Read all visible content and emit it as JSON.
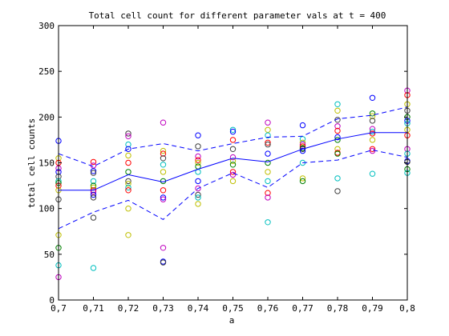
{
  "chart_data": {
    "type": "scatter",
    "title": "Total cell count for different parameter vals at t = 400",
    "xlabel": "a",
    "ylabel": "total cell counts",
    "xlim": [
      0.7,
      0.8
    ],
    "ylim": [
      0,
      300
    ],
    "xticks": [
      0.7,
      0.71,
      0.72,
      0.73,
      0.74,
      0.75,
      0.76,
      0.77,
      0.78,
      0.79,
      0.8
    ],
    "xtick_labels": [
      "0,7",
      "0,71",
      "0,72",
      "0,73",
      "0,74",
      "0,75",
      "0,76",
      "0,77",
      "0,78",
      "0,79",
      "0,8"
    ],
    "yticks": [
      0,
      50,
      100,
      150,
      200,
      250,
      300
    ],
    "ytick_labels": [
      "0",
      "50",
      "100",
      "150",
      "200",
      "250",
      "300"
    ],
    "grid": false,
    "legend": false,
    "marker_colors": [
      "#0000ff",
      "#008000",
      "#ff0000",
      "#00bfbf",
      "#bf00bf",
      "#bfbf00",
      "#404040"
    ],
    "mean_line": {
      "color": "#0000ff",
      "style": "solid",
      "x": [
        0.7,
        0.71,
        0.72,
        0.73,
        0.74,
        0.75,
        0.76,
        0.77,
        0.78,
        0.79,
        0.8
      ],
      "y": [
        120,
        120,
        137,
        129,
        143,
        155,
        151,
        165,
        176,
        183,
        183
      ]
    },
    "upper_band": {
      "color": "#0000ff",
      "style": "dashed",
      "x": [
        0.7,
        0.71,
        0.72,
        0.73,
        0.74,
        0.75,
        0.76,
        0.77,
        0.78,
        0.79,
        0.8
      ],
      "y": [
        160,
        146,
        165,
        171,
        163,
        171,
        178,
        179,
        198,
        202,
        211
      ]
    },
    "lower_band": {
      "color": "#0000ff",
      "style": "dashed",
      "x": [
        0.7,
        0.71,
        0.72,
        0.73,
        0.74,
        0.75,
        0.76,
        0.77,
        0.78,
        0.79,
        0.8
      ],
      "y": [
        78,
        96,
        109,
        88,
        122,
        139,
        123,
        150,
        153,
        164,
        156
      ]
    },
    "points": [
      {
        "x": 0.7,
        "y": 174,
        "c": 0
      },
      {
        "x": 0.7,
        "y": 155,
        "c": 5
      },
      {
        "x": 0.7,
        "y": 150,
        "c": 2
      },
      {
        "x": 0.7,
        "y": 144,
        "c": 4
      },
      {
        "x": 0.7,
        "y": 140,
        "c": 0
      },
      {
        "x": 0.7,
        "y": 135,
        "c": 6
      },
      {
        "x": 0.7,
        "y": 130,
        "c": 3
      },
      {
        "x": 0.7,
        "y": 128,
        "c": 1
      },
      {
        "x": 0.7,
        "y": 125,
        "c": 2
      },
      {
        "x": 0.7,
        "y": 120,
        "c": 5
      },
      {
        "x": 0.7,
        "y": 110,
        "c": 6
      },
      {
        "x": 0.7,
        "y": 71,
        "c": 5
      },
      {
        "x": 0.7,
        "y": 57,
        "c": 1
      },
      {
        "x": 0.7,
        "y": 38,
        "c": 3
      },
      {
        "x": 0.7,
        "y": 25,
        "c": 4
      },
      {
        "x": 0.71,
        "y": 151,
        "c": 2
      },
      {
        "x": 0.71,
        "y": 147,
        "c": 4
      },
      {
        "x": 0.71,
        "y": 141,
        "c": 0
      },
      {
        "x": 0.71,
        "y": 139,
        "c": 6
      },
      {
        "x": 0.71,
        "y": 130,
        "c": 3
      },
      {
        "x": 0.71,
        "y": 125,
        "c": 1
      },
      {
        "x": 0.71,
        "y": 123,
        "c": 5
      },
      {
        "x": 0.71,
        "y": 120,
        "c": 2
      },
      {
        "x": 0.71,
        "y": 118,
        "c": 4
      },
      {
        "x": 0.71,
        "y": 115,
        "c": 0
      },
      {
        "x": 0.71,
        "y": 112,
        "c": 6
      },
      {
        "x": 0.71,
        "y": 90,
        "c": 6
      },
      {
        "x": 0.71,
        "y": 35,
        "c": 3
      },
      {
        "x": 0.72,
        "y": 182,
        "c": 6
      },
      {
        "x": 0.72,
        "y": 179,
        "c": 4
      },
      {
        "x": 0.72,
        "y": 170,
        "c": 3
      },
      {
        "x": 0.72,
        "y": 165,
        "c": 0
      },
      {
        "x": 0.72,
        "y": 158,
        "c": 5
      },
      {
        "x": 0.72,
        "y": 150,
        "c": 2
      },
      {
        "x": 0.72,
        "y": 140,
        "c": 1
      },
      {
        "x": 0.72,
        "y": 130,
        "c": 6
      },
      {
        "x": 0.72,
        "y": 127,
        "c": 5
      },
      {
        "x": 0.72,
        "y": 123,
        "c": 3
      },
      {
        "x": 0.72,
        "y": 120,
        "c": 2
      },
      {
        "x": 0.72,
        "y": 100,
        "c": 5
      },
      {
        "x": 0.72,
        "y": 71,
        "c": 5
      },
      {
        "x": 0.73,
        "y": 194,
        "c": 4
      },
      {
        "x": 0.73,
        "y": 163,
        "c": 5
      },
      {
        "x": 0.73,
        "y": 160,
        "c": 2
      },
      {
        "x": 0.73,
        "y": 155,
        "c": 6
      },
      {
        "x": 0.73,
        "y": 148,
        "c": 3
      },
      {
        "x": 0.73,
        "y": 140,
        "c": 5
      },
      {
        "x": 0.73,
        "y": 130,
        "c": 1
      },
      {
        "x": 0.73,
        "y": 120,
        "c": 2
      },
      {
        "x": 0.73,
        "y": 112,
        "c": 0
      },
      {
        "x": 0.73,
        "y": 110,
        "c": 4
      },
      {
        "x": 0.73,
        "y": 57,
        "c": 4
      },
      {
        "x": 0.73,
        "y": 42,
        "c": 0
      },
      {
        "x": 0.73,
        "y": 41,
        "c": 6
      },
      {
        "x": 0.74,
        "y": 180,
        "c": 0
      },
      {
        "x": 0.74,
        "y": 168,
        "c": 6
      },
      {
        "x": 0.74,
        "y": 157,
        "c": 4
      },
      {
        "x": 0.74,
        "y": 153,
        "c": 2
      },
      {
        "x": 0.74,
        "y": 150,
        "c": 5
      },
      {
        "x": 0.74,
        "y": 146,
        "c": 1
      },
      {
        "x": 0.74,
        "y": 140,
        "c": 3
      },
      {
        "x": 0.74,
        "y": 130,
        "c": 0
      },
      {
        "x": 0.74,
        "y": 122,
        "c": 4
      },
      {
        "x": 0.74,
        "y": 115,
        "c": 6
      },
      {
        "x": 0.74,
        "y": 112,
        "c": 3
      },
      {
        "x": 0.74,
        "y": 105,
        "c": 5
      },
      {
        "x": 0.75,
        "y": 186,
        "c": 3
      },
      {
        "x": 0.75,
        "y": 184,
        "c": 0
      },
      {
        "x": 0.75,
        "y": 175,
        "c": 2
      },
      {
        "x": 0.75,
        "y": 165,
        "c": 6
      },
      {
        "x": 0.75,
        "y": 156,
        "c": 4
      },
      {
        "x": 0.75,
        "y": 152,
        "c": 5
      },
      {
        "x": 0.75,
        "y": 148,
        "c": 1
      },
      {
        "x": 0.75,
        "y": 140,
        "c": 2
      },
      {
        "x": 0.75,
        "y": 137,
        "c": 4
      },
      {
        "x": 0.75,
        "y": 130,
        "c": 5
      },
      {
        "x": 0.76,
        "y": 194,
        "c": 4
      },
      {
        "x": 0.76,
        "y": 186,
        "c": 5
      },
      {
        "x": 0.76,
        "y": 180,
        "c": 3
      },
      {
        "x": 0.76,
        "y": 172,
        "c": 2
      },
      {
        "x": 0.76,
        "y": 170,
        "c": 6
      },
      {
        "x": 0.76,
        "y": 160,
        "c": 0
      },
      {
        "x": 0.76,
        "y": 150,
        "c": 1
      },
      {
        "x": 0.76,
        "y": 140,
        "c": 5
      },
      {
        "x": 0.76,
        "y": 130,
        "c": 3
      },
      {
        "x": 0.76,
        "y": 117,
        "c": 2
      },
      {
        "x": 0.76,
        "y": 112,
        "c": 4
      },
      {
        "x": 0.76,
        "y": 85,
        "c": 3
      },
      {
        "x": 0.77,
        "y": 191,
        "c": 0
      },
      {
        "x": 0.77,
        "y": 176,
        "c": 3
      },
      {
        "x": 0.77,
        "y": 172,
        "c": 5
      },
      {
        "x": 0.77,
        "y": 170,
        "c": 4
      },
      {
        "x": 0.77,
        "y": 168,
        "c": 2
      },
      {
        "x": 0.77,
        "y": 166,
        "c": 1
      },
      {
        "x": 0.77,
        "y": 165,
        "c": 6
      },
      {
        "x": 0.77,
        "y": 163,
        "c": 0
      },
      {
        "x": 0.77,
        "y": 150,
        "c": 3
      },
      {
        "x": 0.77,
        "y": 133,
        "c": 5
      },
      {
        "x": 0.77,
        "y": 130,
        "c": 1
      },
      {
        "x": 0.78,
        "y": 214,
        "c": 3
      },
      {
        "x": 0.78,
        "y": 207,
        "c": 5
      },
      {
        "x": 0.78,
        "y": 197,
        "c": 6
      },
      {
        "x": 0.78,
        "y": 190,
        "c": 4
      },
      {
        "x": 0.78,
        "y": 185,
        "c": 2
      },
      {
        "x": 0.78,
        "y": 178,
        "c": 0
      },
      {
        "x": 0.78,
        "y": 175,
        "c": 1
      },
      {
        "x": 0.78,
        "y": 165,
        "c": 5
      },
      {
        "x": 0.78,
        "y": 161,
        "c": 2
      },
      {
        "x": 0.78,
        "y": 160,
        "c": 1
      },
      {
        "x": 0.78,
        "y": 133,
        "c": 3
      },
      {
        "x": 0.78,
        "y": 119,
        "c": 6
      },
      {
        "x": 0.79,
        "y": 221,
        "c": 0
      },
      {
        "x": 0.79,
        "y": 204,
        "c": 1
      },
      {
        "x": 0.79,
        "y": 201,
        "c": 5
      },
      {
        "x": 0.79,
        "y": 196,
        "c": 6
      },
      {
        "x": 0.79,
        "y": 187,
        "c": 4
      },
      {
        "x": 0.79,
        "y": 184,
        "c": 3
      },
      {
        "x": 0.79,
        "y": 182,
        "c": 2
      },
      {
        "x": 0.79,
        "y": 175,
        "c": 5
      },
      {
        "x": 0.79,
        "y": 165,
        "c": 2
      },
      {
        "x": 0.79,
        "y": 163,
        "c": 4
      },
      {
        "x": 0.79,
        "y": 138,
        "c": 3
      },
      {
        "x": 0.8,
        "y": 229,
        "c": 4
      },
      {
        "x": 0.8,
        "y": 224,
        "c": 2
      },
      {
        "x": 0.8,
        "y": 214,
        "c": 5
      },
      {
        "x": 0.8,
        "y": 207,
        "c": 6
      },
      {
        "x": 0.8,
        "y": 200,
        "c": 1
      },
      {
        "x": 0.8,
        "y": 196,
        "c": 0
      },
      {
        "x": 0.8,
        "y": 193,
        "c": 3
      },
      {
        "x": 0.8,
        "y": 186,
        "c": 5
      },
      {
        "x": 0.8,
        "y": 180,
        "c": 2
      },
      {
        "x": 0.8,
        "y": 165,
        "c": 4
      },
      {
        "x": 0.8,
        "y": 160,
        "c": 3
      },
      {
        "x": 0.8,
        "y": 152,
        "c": 0
      },
      {
        "x": 0.8,
        "y": 151,
        "c": 6
      },
      {
        "x": 0.8,
        "y": 143,
        "c": 1
      },
      {
        "x": 0.8,
        "y": 139,
        "c": 3
      }
    ]
  }
}
